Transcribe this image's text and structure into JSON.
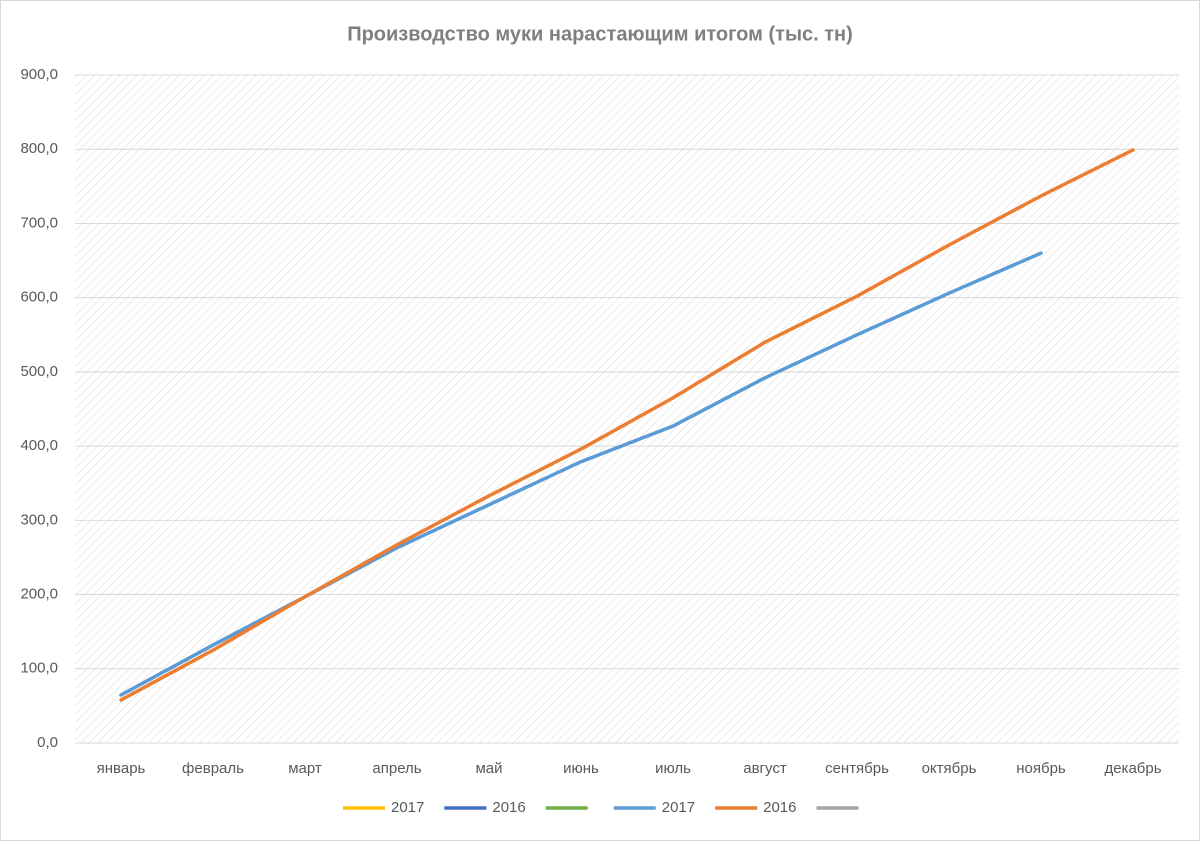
{
  "chart_data": {
    "type": "line",
    "title": "Производство муки нарастающим итогом (тыс. тн)",
    "categories": [
      "январь",
      "февраль",
      "март",
      "апрель",
      "май",
      "июнь",
      "июль",
      "август",
      "сентябрь",
      "октябрь",
      "ноябрь",
      "декабрь"
    ],
    "series": [
      {
        "name": "2017",
        "color": "#ffc000",
        "values": [
          null,
          null,
          null,
          null,
          null,
          null,
          null,
          null,
          null,
          null,
          null,
          null
        ]
      },
      {
        "name": "2016",
        "color": "#4472c4",
        "values": [
          null,
          null,
          null,
          null,
          null,
          null,
          null,
          null,
          null,
          null,
          null,
          null
        ]
      },
      {
        "name": null,
        "color": "#70ad47",
        "values": [
          null,
          null,
          null,
          null,
          null,
          null,
          null,
          null,
          null,
          null,
          null,
          null
        ]
      },
      {
        "name": "2017",
        "color": "#5b9bd5",
        "values": [
          64.7,
          132,
          197,
          263,
          321,
          379,
          427,
          492,
          550,
          606,
          660,
          null
        ]
      },
      {
        "name": "2016",
        "color": "#ed7d31",
        "values": [
          58,
          125,
          197,
          267,
          333,
          396,
          465,
          540,
          602,
          671,
          737,
          799
        ]
      },
      {
        "name": null,
        "color": "#a5a5a5",
        "values": [
          null,
          null,
          null,
          null,
          null,
          null,
          null,
          null,
          null,
          null,
          null,
          null
        ]
      }
    ],
    "ylim": [
      0,
      900
    ],
    "yticks": [
      {
        "value": 0,
        "label": "0,0"
      },
      {
        "value": 100,
        "label": "100,0"
      },
      {
        "value": 200,
        "label": "200,0"
      },
      {
        "value": 300,
        "label": "300,0"
      },
      {
        "value": 400,
        "label": "400,0"
      },
      {
        "value": 500,
        "label": "500,0"
      },
      {
        "value": 600,
        "label": "600,0"
      },
      {
        "value": 700,
        "label": "700,0"
      },
      {
        "value": 800,
        "label": "800,0"
      },
      {
        "value": 900,
        "label": "900,0"
      }
    ],
    "grid": true
  }
}
